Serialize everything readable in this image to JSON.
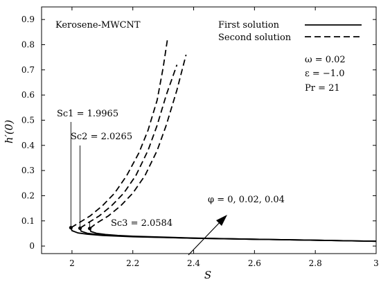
{
  "chart_data": {
    "type": "line",
    "title": "",
    "xlabel": "S",
    "ylabel": "h′(0)",
    "xlim": [
      1.9,
      3.0
    ],
    "ylim": [
      -0.03,
      0.95
    ],
    "xticks": [
      2,
      2.2,
      2.4,
      2.6,
      2.8,
      3
    ],
    "xtick_labels": [
      "2",
      "2.2",
      "2.4",
      "2.6",
      "2.8",
      "3"
    ],
    "yticks": [
      0,
      0.1,
      0.2,
      0.3,
      0.4,
      0.5,
      0.6,
      0.7,
      0.8,
      0.9
    ],
    "ytick_labels": [
      "0",
      "0.1",
      "0.2",
      "0.3",
      "0.4",
      "0.5",
      "0.6",
      "0.7",
      "0.8",
      "0.9"
    ],
    "grid": false,
    "legend": {
      "position": "top-right",
      "entries": [
        {
          "label": "First solution",
          "style": "solid"
        },
        {
          "label": "Second solution",
          "style": "dashed"
        }
      ]
    },
    "annotations": {
      "fluid": "Kerosene-MWCNT",
      "params": [
        "ω = 0.02",
        "ε = −1.0",
        "Pr = 21"
      ],
      "phi_label": "φ = 0, 0.02, 0.04",
      "sc1_label": "Sc1 = 1.9965",
      "sc2_label": "Sc2 = 2.0265",
      "sc3_label": "Sc3 = 2.0584"
    },
    "critical_points": [
      {
        "name": "Sc1",
        "S": 1.9965,
        "h": 0.073
      },
      {
        "name": "Sc2",
        "S": 2.0265,
        "h": 0.071
      },
      {
        "name": "Sc3",
        "S": 2.0584,
        "h": 0.07
      }
    ],
    "series": [
      {
        "solution": "first",
        "style": "solid",
        "phi": 0,
        "points": [
          [
            1.9965,
            0.073
          ],
          [
            2.0,
            0.061
          ],
          [
            2.02,
            0.052
          ],
          [
            2.05,
            0.047
          ],
          [
            2.1,
            0.042
          ],
          [
            2.2,
            0.037
          ],
          [
            2.4,
            0.031
          ],
          [
            2.6,
            0.027
          ],
          [
            2.8,
            0.023
          ],
          [
            3.0,
            0.019
          ]
        ]
      },
      {
        "solution": "first",
        "style": "solid",
        "phi": 0.02,
        "points": [
          [
            2.0265,
            0.071
          ],
          [
            2.03,
            0.059
          ],
          [
            2.05,
            0.051
          ],
          [
            2.08,
            0.046
          ],
          [
            2.12,
            0.042
          ],
          [
            2.2,
            0.038
          ],
          [
            2.4,
            0.031
          ],
          [
            2.6,
            0.027
          ],
          [
            2.8,
            0.023
          ],
          [
            3.0,
            0.019
          ]
        ]
      },
      {
        "solution": "first",
        "style": "solid",
        "phi": 0.04,
        "points": [
          [
            2.0584,
            0.07
          ],
          [
            2.062,
            0.058
          ],
          [
            2.08,
            0.051
          ],
          [
            2.11,
            0.046
          ],
          [
            2.15,
            0.042
          ],
          [
            2.2,
            0.039
          ],
          [
            2.4,
            0.032
          ],
          [
            2.6,
            0.027
          ],
          [
            2.8,
            0.023
          ],
          [
            3.0,
            0.019
          ]
        ]
      },
      {
        "solution": "second",
        "style": "dashed",
        "phi": 0,
        "points": [
          [
            1.9965,
            0.073
          ],
          [
            2.02,
            0.09
          ],
          [
            2.06,
            0.12
          ],
          [
            2.1,
            0.16
          ],
          [
            2.14,
            0.21
          ],
          [
            2.18,
            0.28
          ],
          [
            2.22,
            0.37
          ],
          [
            2.25,
            0.46
          ],
          [
            2.28,
            0.58
          ],
          [
            2.3,
            0.71
          ],
          [
            2.315,
            0.83
          ]
        ]
      },
      {
        "solution": "second",
        "style": "dashed",
        "phi": 0.02,
        "points": [
          [
            2.0265,
            0.071
          ],
          [
            2.05,
            0.09
          ],
          [
            2.09,
            0.12
          ],
          [
            2.13,
            0.16
          ],
          [
            2.17,
            0.21
          ],
          [
            2.21,
            0.28
          ],
          [
            2.25,
            0.38
          ],
          [
            2.28,
            0.48
          ],
          [
            2.31,
            0.6
          ],
          [
            2.345,
            0.72
          ]
        ]
      },
      {
        "solution": "second",
        "style": "dashed",
        "phi": 0.04,
        "points": [
          [
            2.0584,
            0.07
          ],
          [
            2.08,
            0.09
          ],
          [
            2.12,
            0.12
          ],
          [
            2.16,
            0.16
          ],
          [
            2.2,
            0.21
          ],
          [
            2.24,
            0.28
          ],
          [
            2.28,
            0.38
          ],
          [
            2.31,
            0.48
          ],
          [
            2.345,
            0.62
          ],
          [
            2.375,
            0.76
          ]
        ]
      }
    ]
  }
}
